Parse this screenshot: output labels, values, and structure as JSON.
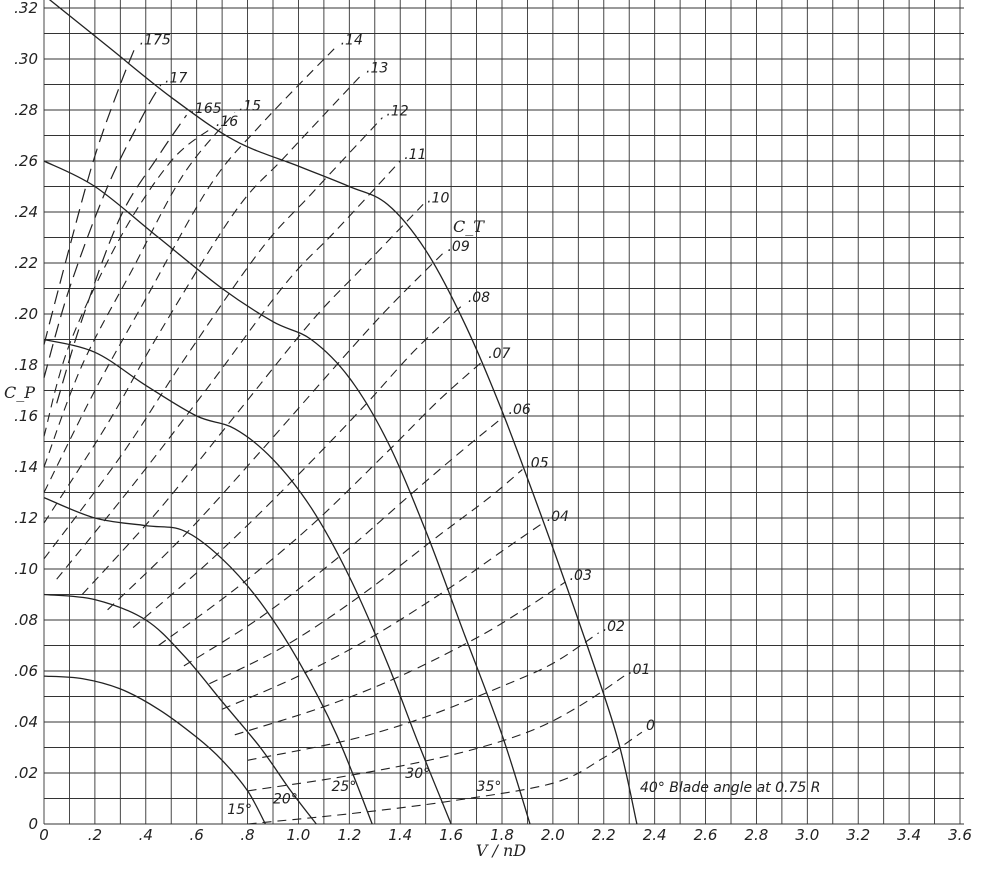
{
  "chart_data": {
    "type": "line",
    "title": "",
    "xlabel": "V / nD",
    "ylabel": "C_P",
    "xlim": [
      0,
      3.6
    ],
    "ylim": [
      0,
      0.32
    ],
    "grid": true,
    "x_tick_labels": [
      "0",
      ".2",
      ".4",
      ".6",
      ".8",
      "1.0",
      "1.2",
      "1.4",
      "1.6",
      "1.8",
      "2.0",
      "2.2",
      "2.4",
      "2.6",
      "2.8",
      "3.0",
      "3.2",
      "3.4",
      "3.6"
    ],
    "y_tick_labels": [
      "0",
      ".02",
      ".04",
      ".06",
      ".08",
      ".10",
      ".12",
      ".14",
      ".16",
      ".18",
      ".20",
      ".22",
      ".24",
      ".26",
      ".28",
      ".30",
      ".32"
    ],
    "ct_family_label": "C_T",
    "blade_angle_caption": "40° Blade angle at 0.75 R",
    "blade_angle_curves": [
      {
        "name": "15°",
        "points": [
          [
            0.0,
            0.058
          ],
          [
            0.15,
            0.057
          ],
          [
            0.3,
            0.053
          ],
          [
            0.45,
            0.045
          ],
          [
            0.6,
            0.034
          ],
          [
            0.7,
            0.025
          ],
          [
            0.8,
            0.013
          ],
          [
            0.87,
            0.0
          ]
        ]
      },
      {
        "name": "20°",
        "points": [
          [
            0.0,
            0.09
          ],
          [
            0.2,
            0.088
          ],
          [
            0.4,
            0.08
          ],
          [
            0.55,
            0.066
          ],
          [
            0.7,
            0.048
          ],
          [
            0.85,
            0.03
          ],
          [
            0.97,
            0.013
          ],
          [
            1.07,
            0.0
          ]
        ]
      },
      {
        "name": "25°",
        "points": [
          [
            0.0,
            0.128
          ],
          [
            0.2,
            0.12
          ],
          [
            0.4,
            0.117
          ],
          [
            0.55,
            0.115
          ],
          [
            0.7,
            0.104
          ],
          [
            0.85,
            0.087
          ],
          [
            1.0,
            0.064
          ],
          [
            1.15,
            0.035
          ],
          [
            1.29,
            0.0
          ]
        ]
      },
      {
        "name": "30°",
        "points": [
          [
            0.0,
            0.19
          ],
          [
            0.2,
            0.185
          ],
          [
            0.4,
            0.172
          ],
          [
            0.6,
            0.16
          ],
          [
            0.75,
            0.155
          ],
          [
            0.9,
            0.143
          ],
          [
            1.05,
            0.124
          ],
          [
            1.2,
            0.097
          ],
          [
            1.35,
            0.063
          ],
          [
            1.47,
            0.032
          ],
          [
            1.6,
            0.0
          ]
        ]
      },
      {
        "name": "35°",
        "points": [
          [
            0.0,
            0.26
          ],
          [
            0.2,
            0.25
          ],
          [
            0.45,
            0.23
          ],
          [
            0.7,
            0.21
          ],
          [
            0.9,
            0.197
          ],
          [
            1.05,
            0.19
          ],
          [
            1.2,
            0.175
          ],
          [
            1.35,
            0.15
          ],
          [
            1.5,
            0.115
          ],
          [
            1.65,
            0.075
          ],
          [
            1.8,
            0.035
          ],
          [
            1.91,
            0.0
          ]
        ]
      },
      {
        "name": "40°",
        "points": [
          [
            0.0,
            0.325
          ],
          [
            0.25,
            0.305
          ],
          [
            0.5,
            0.285
          ],
          [
            0.75,
            0.268
          ],
          [
            1.0,
            0.258
          ],
          [
            1.2,
            0.25
          ],
          [
            1.35,
            0.243
          ],
          [
            1.5,
            0.225
          ],
          [
            1.65,
            0.197
          ],
          [
            1.8,
            0.162
          ],
          [
            1.95,
            0.122
          ],
          [
            2.1,
            0.08
          ],
          [
            2.25,
            0.035
          ],
          [
            2.33,
            0.0
          ]
        ]
      }
    ],
    "ct_curves": [
      {
        "name": "0",
        "points": [
          [
            0.8,
            0.0
          ],
          [
            1.2,
            0.004
          ],
          [
            1.6,
            0.009
          ],
          [
            2.0,
            0.016
          ],
          [
            2.2,
            0.026
          ],
          [
            2.35,
            0.036
          ]
        ]
      },
      {
        "name": ".01",
        "points": [
          [
            0.8,
            0.013
          ],
          [
            1.2,
            0.019
          ],
          [
            1.6,
            0.027
          ],
          [
            1.9,
            0.036
          ],
          [
            2.1,
            0.046
          ],
          [
            2.28,
            0.058
          ]
        ]
      },
      {
        "name": ".02",
        "points": [
          [
            0.8,
            0.025
          ],
          [
            1.2,
            0.033
          ],
          [
            1.5,
            0.042
          ],
          [
            1.8,
            0.054
          ],
          [
            2.0,
            0.063
          ],
          [
            2.18,
            0.075
          ]
        ]
      },
      {
        "name": ".03",
        "points": [
          [
            0.75,
            0.035
          ],
          [
            1.1,
            0.046
          ],
          [
            1.4,
            0.058
          ],
          [
            1.7,
            0.073
          ],
          [
            1.9,
            0.085
          ],
          [
            2.05,
            0.095
          ]
        ]
      },
      {
        "name": ".04",
        "points": [
          [
            0.7,
            0.045
          ],
          [
            1.0,
            0.058
          ],
          [
            1.3,
            0.074
          ],
          [
            1.6,
            0.093
          ],
          [
            1.8,
            0.107
          ],
          [
            1.96,
            0.118
          ]
        ]
      },
      {
        "name": ".05",
        "points": [
          [
            0.65,
            0.055
          ],
          [
            0.95,
            0.07
          ],
          [
            1.25,
            0.09
          ],
          [
            1.55,
            0.113
          ],
          [
            1.75,
            0.128
          ],
          [
            1.88,
            0.139
          ]
        ]
      },
      {
        "name": ".06",
        "points": [
          [
            0.55,
            0.062
          ],
          [
            0.85,
            0.081
          ],
          [
            1.15,
            0.104
          ],
          [
            1.45,
            0.13
          ],
          [
            1.65,
            0.147
          ],
          [
            1.81,
            0.16
          ]
        ]
      },
      {
        "name": ".07",
        "points": [
          [
            0.45,
            0.07
          ],
          [
            0.75,
            0.092
          ],
          [
            1.05,
            0.117
          ],
          [
            1.35,
            0.146
          ],
          [
            1.55,
            0.166
          ],
          [
            1.73,
            0.182
          ]
        ]
      },
      {
        "name": ".08",
        "points": [
          [
            0.35,
            0.077
          ],
          [
            0.65,
            0.103
          ],
          [
            0.95,
            0.132
          ],
          [
            1.25,
            0.163
          ],
          [
            1.45,
            0.185
          ],
          [
            1.65,
            0.204
          ]
        ]
      },
      {
        "name": ".09",
        "points": [
          [
            0.25,
            0.084
          ],
          [
            0.55,
            0.113
          ],
          [
            0.85,
            0.146
          ],
          [
            1.15,
            0.18
          ],
          [
            1.35,
            0.202
          ],
          [
            1.57,
            0.224
          ]
        ]
      },
      {
        "name": ".10",
        "points": [
          [
            0.15,
            0.09
          ],
          [
            0.45,
            0.123
          ],
          [
            0.75,
            0.16
          ],
          [
            1.05,
            0.197
          ],
          [
            1.25,
            0.218
          ],
          [
            1.49,
            0.243
          ]
        ]
      },
      {
        "name": ".11",
        "points": [
          [
            0.05,
            0.096
          ],
          [
            0.35,
            0.133
          ],
          [
            0.65,
            0.172
          ],
          [
            0.95,
            0.212
          ],
          [
            1.15,
            0.233
          ],
          [
            1.4,
            0.26
          ]
        ]
      },
      {
        "name": ".12",
        "points": [
          [
            0.0,
            0.104
          ],
          [
            0.3,
            0.144
          ],
          [
            0.55,
            0.182
          ],
          [
            0.85,
            0.225
          ],
          [
            1.05,
            0.247
          ],
          [
            1.33,
            0.277
          ]
        ]
      },
      {
        "name": ".13",
        "points": [
          [
            0.0,
            0.118
          ],
          [
            0.25,
            0.157
          ],
          [
            0.45,
            0.192
          ],
          [
            0.75,
            0.24
          ],
          [
            0.95,
            0.262
          ],
          [
            1.25,
            0.294
          ]
        ]
      },
      {
        "name": ".14",
        "points": [
          [
            0.0,
            0.13
          ],
          [
            0.2,
            0.17
          ],
          [
            0.4,
            0.206
          ],
          [
            0.65,
            0.25
          ],
          [
            0.85,
            0.274
          ],
          [
            1.15,
            0.305
          ]
        ]
      },
      {
        "name": ".15",
        "points": [
          [
            0.0,
            0.14
          ],
          [
            0.15,
            0.18
          ],
          [
            0.35,
            0.218
          ],
          [
            0.55,
            0.255
          ],
          [
            0.75,
            0.279
          ]
        ]
      },
      {
        "name": ".16",
        "points": [
          [
            0.0,
            0.152
          ],
          [
            0.1,
            0.188
          ],
          [
            0.3,
            0.23
          ],
          [
            0.5,
            0.26
          ],
          [
            0.66,
            0.273
          ]
        ]
      },
      {
        "name": ".165",
        "points": [
          [
            0.05,
            0.165
          ],
          [
            0.15,
            0.198
          ],
          [
            0.3,
            0.238
          ],
          [
            0.45,
            0.262
          ],
          [
            0.56,
            0.278
          ]
        ]
      },
      {
        "name": ".17",
        "points": [
          [
            0.0,
            0.175
          ],
          [
            0.1,
            0.21
          ],
          [
            0.25,
            0.25
          ],
          [
            0.4,
            0.28
          ],
          [
            0.46,
            0.29
          ]
        ]
      },
      {
        "name": ".175",
        "points": [
          [
            0.0,
            0.188
          ],
          [
            0.1,
            0.226
          ],
          [
            0.2,
            0.262
          ],
          [
            0.3,
            0.29
          ],
          [
            0.36,
            0.305
          ]
        ]
      }
    ]
  }
}
